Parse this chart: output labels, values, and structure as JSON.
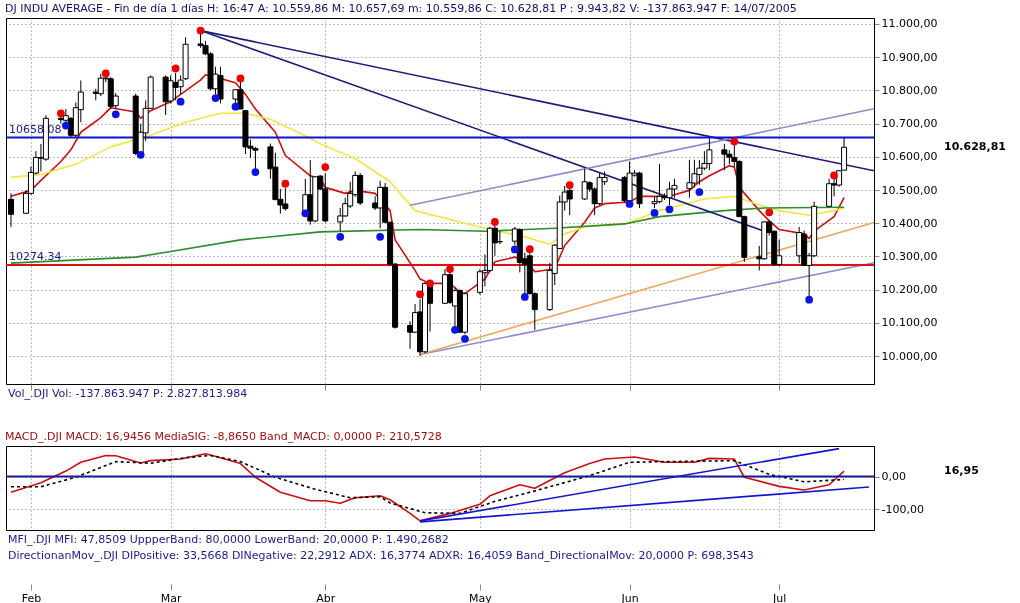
{
  "chart_data": [
    {
      "type": "candlestick",
      "title": "DJ INDU AVERAGE - Fin de día 1 días H: 16:47 A: 10.559,86 M: 10.657,69 m: 10.559,86 C: 10.628,81 P : 9.943,82 V: -137.863.947 F: 14/07/2005",
      "x": [
        "2005-01-28",
        "2005-01-31",
        "2005-02-01",
        "2005-02-02",
        "2005-02-03",
        "2005-02-04",
        "2005-02-07",
        "2005-02-08",
        "2005-02-09",
        "2005-02-10",
        "2005-02-11",
        "2005-02-14",
        "2005-02-15",
        "2005-02-16",
        "2005-02-17",
        "2005-02-18",
        "2005-02-22",
        "2005-02-23",
        "2005-02-24",
        "2005-02-25",
        "2005-02-28",
        "2005-03-01",
        "2005-03-02",
        "2005-03-03",
        "2005-03-04",
        "2005-03-07",
        "2005-03-08",
        "2005-03-09",
        "2005-03-10",
        "2005-03-11",
        "2005-03-14",
        "2005-03-15",
        "2005-03-16",
        "2005-03-17",
        "2005-03-18",
        "2005-03-21",
        "2005-03-22",
        "2005-03-23",
        "2005-03-24",
        "2005-03-28",
        "2005-03-29",
        "2005-03-30",
        "2005-03-31",
        "2005-04-01",
        "2005-04-04",
        "2005-04-05",
        "2005-04-06",
        "2005-04-07",
        "2005-04-08",
        "2005-04-11",
        "2005-04-12",
        "2005-04-13",
        "2005-04-14",
        "2005-04-15",
        "2005-04-18",
        "2005-04-19",
        "2005-04-20",
        "2005-04-21",
        "2005-04-22",
        "2005-04-25",
        "2005-04-26",
        "2005-04-27",
        "2005-04-28",
        "2005-04-29",
        "2005-05-02",
        "2005-05-03",
        "2005-05-04",
        "2005-05-05",
        "2005-05-06",
        "2005-05-09",
        "2005-05-10",
        "2005-05-11",
        "2005-05-12",
        "2005-05-13",
        "2005-05-16",
        "2005-05-17",
        "2005-05-18",
        "2005-05-19",
        "2005-05-20",
        "2005-05-23",
        "2005-05-24",
        "2005-05-25",
        "2005-05-26",
        "2005-05-27",
        "2005-05-31",
        "2005-06-01",
        "2005-06-02",
        "2005-06-03",
        "2005-06-06",
        "2005-06-07",
        "2005-06-08",
        "2005-06-09",
        "2005-06-10",
        "2005-06-13",
        "2005-06-14",
        "2005-06-15",
        "2005-06-16",
        "2005-06-17",
        "2005-06-20",
        "2005-06-21",
        "2005-06-22",
        "2005-06-23",
        "2005-06-24",
        "2005-06-27",
        "2005-06-28",
        "2005-06-29",
        "2005-06-30",
        "2005-07-01",
        "2005-07-05",
        "2005-07-06",
        "2005-07-07",
        "2005-07-08",
        "2005-07-11",
        "2005-07-12",
        "2005-07-13",
        "2005-07-14"
      ],
      "ohlc": [
        [
          10472,
          10490,
          10389,
          10427
        ],
        [
          10430,
          10499,
          10429,
          10490
        ],
        [
          10490,
          10571,
          10486,
          10553
        ],
        [
          10551,
          10617,
          10547,
          10598
        ],
        [
          10598,
          10639,
          10556,
          10596
        ],
        [
          10593,
          10725,
          10588,
          10716
        ],
        [
          10716,
          10722,
          10700,
          10712
        ],
        [
          10710,
          10744,
          10704,
          10724
        ],
        [
          10716,
          10720,
          10660,
          10665
        ],
        [
          10665,
          10764,
          10660,
          10748
        ],
        [
          10742,
          10830,
          10704,
          10795
        ],
        [
          10795,
          10805,
          10770,
          10791
        ],
        [
          10790,
          10850,
          10783,
          10837
        ],
        [
          10837,
          10845,
          10825,
          10835
        ],
        [
          10835,
          10840,
          10745,
          10752
        ],
        [
          10754,
          10792,
          10745,
          10783
        ],
        [
          10783,
          10790,
          10605,
          10610
        ],
        [
          10612,
          10700,
          10610,
          10674
        ],
        [
          10672,
          10770,
          10648,
          10746
        ],
        [
          10746,
          10845,
          10744,
          10840
        ],
        [
          10840,
          10845,
          10726,
          10766
        ],
        [
          10768,
          10845,
          10761,
          10829
        ],
        [
          10824,
          10853,
          10770,
          10809
        ],
        [
          10811,
          10845,
          10788,
          10831
        ],
        [
          10835,
          10960,
          10831,
          10939
        ],
        [
          10940,
          10976,
          10928,
          10935
        ],
        [
          10935,
          10949,
          10906,
          10910
        ],
        [
          10910,
          10915,
          10800,
          10805
        ],
        [
          10805,
          10871,
          10788,
          10849
        ],
        [
          10845,
          10871,
          10761,
          10774
        ],
        [
          10774,
          10802,
          10761,
          10802
        ],
        [
          10802,
          10827,
          10744,
          10744
        ],
        [
          10739,
          10740,
          10608,
          10630
        ],
        [
          10632,
          10652,
          10597,
          10626
        ],
        [
          10625,
          10630,
          10560,
          10620
        ],
        [
          10630,
          10640,
          10534,
          10564
        ],
        [
          10569,
          10612,
          10471,
          10471
        ],
        [
          10472,
          10503,
          10429,
          10455
        ],
        [
          10458,
          10507,
          10438,
          10444
        ],
        [
          10438,
          10534,
          10436,
          10486
        ],
        [
          10486,
          10590,
          10396,
          10407
        ],
        [
          10407,
          10540,
          10403,
          10540
        ],
        [
          10542,
          10545,
          10500,
          10503
        ],
        [
          10503,
          10551,
          10403,
          10407
        ],
        [
          10404,
          10446,
          10376,
          10422
        ],
        [
          10422,
          10477,
          10420,
          10459
        ],
        [
          10452,
          10525,
          10446,
          10490
        ],
        [
          10486,
          10556,
          10480,
          10544
        ],
        [
          10544,
          10551,
          10455,
          10461
        ],
        [
          10461,
          10481,
          10440,
          10446
        ],
        [
          10446,
          10528,
          10385,
          10508
        ],
        [
          10508,
          10521,
          10400,
          10403
        ],
        [
          10403,
          10405,
          10271,
          10277
        ],
        [
          10277,
          10280,
          10083,
          10087
        ],
        [
          10092,
          10105,
          10022,
          10072
        ],
        [
          10072,
          10157,
          10070,
          10131
        ],
        [
          10133,
          10171,
          10000,
          10013
        ],
        [
          10013,
          10223,
          10008,
          10219
        ],
        [
          10210,
          10214,
          10074,
          10159
        ],
        [
          10159,
          10262,
          10157,
          10245
        ],
        [
          10245,
          10254,
          10157,
          10162
        ],
        [
          10151,
          10206,
          10087,
          10197
        ],
        [
          10197,
          10201,
          10070,
          10072
        ],
        [
          10072,
          10192,
          10066,
          10188
        ],
        [
          10192,
          10262,
          10185,
          10254
        ],
        [
          10251,
          10306,
          10210,
          10258
        ],
        [
          10258,
          10389,
          10252,
          10385
        ],
        [
          10385,
          10394,
          10302,
          10341
        ],
        [
          10344,
          10376,
          10337,
          10345
        ],
        [
          10346,
          10389,
          10335,
          10383
        ],
        [
          10381,
          10385,
          10252,
          10282
        ],
        [
          10293,
          10311,
          10188,
          10276
        ],
        [
          10302,
          10310,
          10186,
          10188
        ],
        [
          10188,
          10192,
          10079,
          10140
        ],
        [
          10140,
          10280,
          10136,
          10258
        ],
        [
          10249,
          10337,
          10214,
          10334
        ],
        [
          10324,
          10483,
          10322,
          10464
        ],
        [
          10464,
          10512,
          10438,
          10494
        ],
        [
          10499,
          10505,
          10424,
          10473
        ],
        [
          10473,
          10564,
          10470,
          10525
        ],
        [
          10522,
          10526,
          10495,
          10503
        ],
        [
          10503,
          10508,
          10424,
          10459
        ],
        [
          10459,
          10551,
          10455,
          10538
        ],
        [
          10525,
          10556,
          10515,
          10538
        ],
        [
          10538,
          10542,
          10462,
          10468
        ],
        [
          10468,
          10586,
          10465,
          10551
        ],
        [
          10545,
          10560,
          10540,
          10551
        ],
        [
          10551,
          10555,
          10446,
          10459
        ],
        [
          10459,
          10481,
          10446,
          10465
        ],
        [
          10465,
          10579,
          10460,
          10481
        ],
        [
          10481,
          10490,
          10470,
          10477
        ],
        [
          10477,
          10525,
          10455,
          10503
        ],
        [
          10503,
          10534,
          10477,
          10514
        ],
        [
          10504,
          10591,
          10477,
          10522
        ],
        [
          10521,
          10591,
          10508,
          10549
        ],
        [
          10547,
          10591,
          10516,
          10566
        ],
        [
          10566,
          10617,
          10560,
          10580
        ],
        [
          10580,
          10656,
          10560,
          10621
        ],
        [
          10621,
          10639,
          10560,
          10608
        ],
        [
          10608,
          10620,
          10577,
          10599
        ],
        [
          10598,
          10639,
          10570,
          10586
        ],
        [
          10586,
          10590,
          10420,
          10420
        ],
        [
          10420,
          10423,
          10284,
          10297
        ],
        [
          10299,
          10332,
          10258,
          10293
        ],
        [
          10293,
          10406,
          10290,
          10404
        ],
        [
          10404,
          10410,
          10363,
          10372
        ],
        [
          10376,
          10378,
          10271,
          10276
        ],
        [
          10276,
          10350,
          10271,
          10302
        ],
        [
          10302,
          10389,
          10280,
          10372
        ],
        [
          10367,
          10378,
          10271,
          10273
        ],
        [
          10273,
          10311,
          10179,
          10302
        ],
        [
          10302,
          10465,
          10298,
          10451
        ],
        [
          10451,
          10534,
          10449,
          10519
        ],
        [
          10519,
          10534,
          10481,
          10515
        ],
        [
          10515,
          10560,
          10510,
          10558
        ],
        [
          10559.86,
          10657.69,
          10559.86,
          10628.81
        ]
      ],
      "series": [
        {
          "type": "line",
          "color": "#cc1010",
          "x": [
            "2005-01-28",
            "2005-02-01",
            "2005-02-03",
            "2005-02-07",
            "2005-02-09",
            "2005-02-11",
            "2005-02-15",
            "2005-02-17",
            "2005-02-22",
            "2005-02-23",
            "2005-02-25",
            "2005-03-01",
            "2005-03-03",
            "2005-03-07",
            "2005-03-08",
            "2005-03-10",
            "2005-03-14",
            "2005-03-16",
            "2005-03-18",
            "2005-03-22",
            "2005-03-24",
            "2005-03-29",
            "2005-03-31",
            "2005-04-01",
            "2005-04-05",
            "2005-04-07",
            "2005-04-11",
            "2005-04-14",
            "2005-04-15",
            "2005-04-19",
            "2005-04-20",
            "2005-04-22",
            "2005-04-26",
            "2005-04-28",
            "2005-04-29",
            "2005-05-03",
            "2005-05-05",
            "2005-05-09",
            "2005-05-11",
            "2005-05-13",
            "2005-05-17",
            "2005-05-19",
            "2005-05-23",
            "2005-05-25",
            "2005-05-27",
            "2005-06-01",
            "2005-06-03",
            "2005-06-07",
            "2005-06-09",
            "2005-06-13",
            "2005-06-15",
            "2005-06-17",
            "2005-06-21",
            "2005-06-22",
            "2005-06-23",
            "2005-06-27",
            "2005-06-29",
            "2005-07-01",
            "2005-07-06",
            "2005-07-07",
            "2005-07-08",
            "2005-07-12",
            "2005-07-14"
          ],
          "values": [
            10481,
            10499,
            10529,
            10586,
            10621,
            10674,
            10718,
            10748,
            10735,
            10716,
            10739,
            10766,
            10788,
            10831,
            10847,
            10840,
            10823,
            10788,
            10744,
            10674,
            10604,
            10543,
            10534,
            10508,
            10490,
            10499,
            10490,
            10438,
            10350,
            10258,
            10232,
            10219,
            10219,
            10193,
            10188,
            10232,
            10284,
            10298,
            10289,
            10254,
            10263,
            10333,
            10403,
            10446,
            10459,
            10464,
            10481,
            10481,
            10481,
            10499,
            10525,
            10543,
            10573,
            10569,
            10508,
            10438,
            10407,
            10381,
            10368,
            10354,
            10376,
            10420,
            10477
          ]
        },
        {
          "type": "line",
          "color": "#f2e640",
          "x": [
            "2005-01-28",
            "2005-02-03",
            "2005-02-10",
            "2005-02-17",
            "2005-02-25",
            "2005-03-04",
            "2005-03-11",
            "2005-03-16",
            "2005-03-21",
            "2005-03-29",
            "2005-03-31",
            "2005-04-07",
            "2005-04-14",
            "2005-04-19",
            "2005-05-02",
            "2005-05-11",
            "2005-05-16",
            "2005-05-19",
            "2005-05-23",
            "2005-05-31",
            "2005-06-07",
            "2005-06-16",
            "2005-06-22",
            "2005-06-27",
            "2005-07-01",
            "2005-07-07",
            "2005-07-12",
            "2005-07-14"
          ],
          "values": [
            10538,
            10547,
            10578,
            10630,
            10665,
            10704,
            10731,
            10731,
            10713,
            10656,
            10639,
            10595,
            10525,
            10438,
            10389,
            10359,
            10337,
            10368,
            10389,
            10398,
            10438,
            10473,
            10481,
            10455,
            10438,
            10424,
            10438,
            10446
          ]
        },
        {
          "type": "line",
          "color": "#2e8b2e",
          "x": [
            "2005-01-28",
            "2005-02-22",
            "2005-03-01",
            "2005-03-15",
            "2005-03-31",
            "2005-04-20",
            "2005-05-03",
            "2005-05-17",
            "2005-05-31",
            "2005-06-07",
            "2005-06-20",
            "2005-06-28",
            "2005-07-14"
          ],
          "values": [
            10280,
            10298,
            10315,
            10350,
            10374,
            10381,
            10376,
            10385,
            10398,
            10420,
            10438,
            10446,
            10448
          ]
        },
        {
          "type": "line",
          "color": "#1c1c78",
          "x": [
            "2005-03-07",
            "2005-07-20"
          ],
          "values": [
            10980,
            10558
          ]
        },
        {
          "type": "line",
          "color": "#1c1c78",
          "x": [
            "2005-03-07",
            "2005-06-28"
          ],
          "values": [
            10980,
            10376
          ]
        },
        {
          "type": "line",
          "color": "#8c8cd0",
          "x": [
            "2005-04-18",
            "2005-07-20"
          ],
          "values": [
            10454,
            10745
          ]
        },
        {
          "type": "line",
          "color": "#8c8cd0",
          "x": [
            "2005-04-20",
            "2005-07-20"
          ],
          "values": [
            10005,
            10281
          ]
        },
        {
          "type": "line",
          "color": "#f0a860",
          "x": [
            "2005-04-20",
            "2005-07-20"
          ],
          "values": [
            10005,
            10402
          ]
        },
        {
          "type": "scatter",
          "color": "#ee0000",
          "x": [
            "2005-02-07",
            "2005-02-16",
            "2005-03-02",
            "2005-03-07",
            "2005-03-15",
            "2005-03-24",
            "2005-04-01",
            "2005-04-20",
            "2005-04-22",
            "2005-04-26",
            "2005-05-05",
            "2005-05-12",
            "2005-05-20",
            "2005-06-22",
            "2005-06-29",
            "2005-07-12"
          ],
          "values": [
            10731,
            10851,
            10866,
            10980,
            10836,
            10519,
            10569,
            10186,
            10219,
            10262,
            10404,
            10322,
            10515,
            10646,
            10433,
            10544
          ]
        },
        {
          "type": "scatter",
          "color": "#0a14e6",
          "x": [
            "2005-02-08",
            "2005-02-18",
            "2005-02-23",
            "2005-03-03",
            "2005-03-10",
            "2005-03-14",
            "2005-03-18",
            "2005-03-28",
            "2005-04-04",
            "2005-04-12",
            "2005-04-27",
            "2005-04-29",
            "2005-05-09",
            "2005-05-11",
            "2005-06-01",
            "2005-06-06",
            "2005-06-09",
            "2005-06-15",
            "2005-07-07"
          ],
          "values": [
            10694,
            10728,
            10606,
            10766,
            10777,
            10751,
            10554,
            10430,
            10359,
            10359,
            10079,
            10052,
            10321,
            10178,
            10458,
            10431,
            10442,
            10494,
            10170
          ]
        }
      ],
      "ref_lines": [
        {
          "axis": "y",
          "value": 10658.08,
          "label": "10658.08",
          "color": "#0a14c8"
        },
        {
          "axis": "y",
          "value": 10274.34,
          "label": "10274.34",
          "color": "#e01010"
        }
      ],
      "annotations": [
        "Vol_.DJI Vol: -137.863.947 P: 2.827.813.984",
        "10.628,81"
      ],
      "xlim": [
        "2005-01-27",
        "2005-07-20"
      ],
      "xticks": [
        {
          "value": "2005-02-01",
          "label": null
        },
        {
          "value": "2005-03-01",
          "label": null
        },
        {
          "value": "2005-04-01",
          "label": null
        },
        {
          "value": "2005-05-02",
          "label": null
        },
        {
          "value": "2005-06-01",
          "label": null
        },
        {
          "value": "2005-07-01",
          "label": null
        }
      ],
      "ylim": [
        9916,
        11018
      ],
      "yticks": [
        {
          "value": 10000,
          "label": "10.000,00"
        },
        {
          "value": 10100,
          "label": "10.100,00"
        },
        {
          "value": 10200,
          "label": "10.200,00"
        },
        {
          "value": 10300,
          "label": "10.300,00"
        },
        {
          "value": 10400,
          "label": "10.400,00"
        },
        {
          "value": 10500,
          "label": "10.500,00"
        },
        {
          "value": 10600,
          "label": "10.600,00"
        },
        {
          "value": 10700,
          "label": "10.700,00"
        },
        {
          "value": 10800,
          "label": "10.800,00"
        },
        {
          "value": 10900,
          "label": "10.900,00"
        },
        {
          "value": 11000,
          "label": "11.000,00"
        }
      ],
      "grid": true,
      "tick_labels": "y"
    },
    {
      "type": "line",
      "title": "MACD_.DJI MACD: 16,9456 MediaSIG: -8,8650 Band_MACD: 0,0000 P: 210,5728",
      "series": [
        {
          "color": "#cc1010",
          "x": [
            "2005-01-28",
            "2005-02-03",
            "2005-02-08",
            "2005-02-11",
            "2005-02-16",
            "2005-02-18",
            "2005-02-23",
            "2005-02-25",
            "2005-03-03",
            "2005-03-08",
            "2005-03-11",
            "2005-03-15",
            "2005-03-18",
            "2005-03-23",
            "2005-03-29",
            "2005-04-01",
            "2005-04-04",
            "2005-04-07",
            "2005-04-12",
            "2005-04-14",
            "2005-04-18",
            "2005-04-20",
            "2005-04-26",
            "2005-05-02",
            "2005-05-04",
            "2005-05-10",
            "2005-05-13",
            "2005-05-19",
            "2005-05-24",
            "2005-05-27",
            "2005-06-02",
            "2005-06-08",
            "2005-06-14",
            "2005-06-17",
            "2005-06-22",
            "2005-06-24",
            "2005-07-01",
            "2005-07-06",
            "2005-07-11",
            "2005-07-14"
          ],
          "values": [
            -48,
            -19,
            17,
            44,
            65,
            64,
            42,
            49,
            54,
            70,
            58,
            40,
            -2,
            -48,
            -74,
            -74,
            -82,
            -65,
            -59,
            -71,
            -113,
            -136,
            -113,
            -85,
            -59,
            -25,
            -36,
            12,
            40,
            54,
            60,
            44,
            44,
            56,
            54,
            -2,
            -30,
            -41,
            -25,
            16.95
          ]
        },
        {
          "color": "#000000",
          "line_style": "dashed",
          "x": [
            "2005-01-28",
            "2005-02-03",
            "2005-02-10",
            "2005-02-18",
            "2005-02-25",
            "2005-03-04",
            "2005-03-09",
            "2005-03-15",
            "2005-03-22",
            "2005-03-30",
            "2005-04-06",
            "2005-04-12",
            "2005-04-14",
            "2005-04-21",
            "2005-04-28",
            "2005-05-05",
            "2005-05-13",
            "2005-05-24",
            "2005-06-01",
            "2005-06-08",
            "2005-06-22",
            "2005-06-29",
            "2005-07-06",
            "2005-07-14"
          ],
          "values": [
            -31,
            -31,
            -2,
            46,
            41,
            58,
            65,
            46,
            -2,
            -39,
            -65,
            -62,
            -81,
            -111,
            -113,
            -76,
            -44,
            3,
            44,
            46,
            49,
            7,
            -16,
            -8.865
          ]
        },
        {
          "color": "#1414d2",
          "x": [
            "2005-04-20",
            "2005-07-13"
          ],
          "values": [
            -136,
            86
          ]
        },
        {
          "color": "#1414d2",
          "x": [
            "2005-04-20",
            "2005-07-19"
          ],
          "values": [
            -139,
            -32
          ]
        }
      ],
      "ref_lines": [
        {
          "axis": "y",
          "value": 0,
          "color": "#1a1aa0"
        }
      ],
      "annotations": [
        "MFI_.DJI MFI: 47,8509 UppperBand: 80,0000 LowerBand: 20,0000 P: 1.490,2682",
        "DirectionanMov_.DJI DIPositive: 33,5668 DINegative: 22,2912 ADX: 16,3774 ADXR: 16,4059 Band_DirectionalMov: 20,0000 P: 698,3543",
        "16,95"
      ],
      "xlim": [
        "2005-01-27",
        "2005-07-20"
      ],
      "xticks": [
        {
          "value": "2005-02-01",
          "label": "Feb"
        },
        {
          "value": "2005-03-01",
          "label": "Mar"
        },
        {
          "value": "2005-04-01",
          "label": "Abr"
        },
        {
          "value": "2005-05-02",
          "label": "May"
        },
        {
          "value": "2005-06-01",
          "label": "Jun"
        },
        {
          "value": "2005-07-01",
          "label": "Jul"
        }
      ],
      "ylim": [
        -164,
        94
      ],
      "yticks": [
        {
          "value": 0,
          "label": "0,00"
        },
        {
          "value": -100,
          "label": "-100,00"
        }
      ],
      "grid": true
    }
  ]
}
